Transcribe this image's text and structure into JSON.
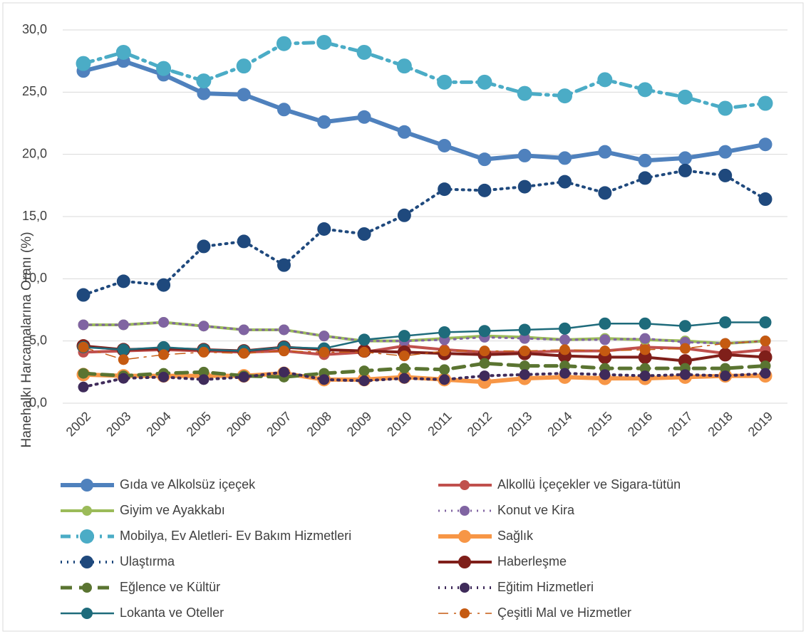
{
  "chart_data": {
    "type": "line",
    "y_label": "Hanehalkı Harcamalarına Oranı (%)",
    "categories": [
      "2002",
      "2003",
      "2004",
      "2005",
      "2006",
      "2007",
      "2008",
      "2009",
      "2010",
      "2011",
      "2012",
      "2013",
      "2014",
      "2015",
      "2016",
      "2017",
      "2018",
      "2019"
    ],
    "ylim": [
      0,
      30
    ],
    "yticks": [
      {
        "value": 0,
        "label": "0,0"
      },
      {
        "value": 5,
        "label": "5,0"
      },
      {
        "value": 10,
        "label": "10,0"
      },
      {
        "value": 15,
        "label": "15,0"
      },
      {
        "value": 20,
        "label": "20,0"
      },
      {
        "value": 25,
        "label": "25,0"
      },
      {
        "value": 30,
        "label": "30,0"
      }
    ],
    "grid": true,
    "legend": "bottom",
    "series": [
      {
        "name": "Gıda ve Alkolsüz içeçek",
        "color": "#4f81bd",
        "line_style": "solid",
        "values": [
          26.7,
          27.5,
          26.4,
          24.9,
          24.8,
          23.6,
          22.6,
          23.0,
          21.8,
          20.7,
          19.6,
          19.9,
          19.7,
          20.2,
          19.5,
          19.7,
          20.2,
          20.8
        ]
      },
      {
        "name": "Alkollü İçeçekler ve Sigara-tütün",
        "color": "#c0504d",
        "line_style": "solid",
        "values": [
          4.1,
          4.2,
          4.3,
          4.2,
          4.1,
          4.2,
          3.9,
          4.1,
          4.6,
          4.3,
          4.1,
          4.1,
          4.2,
          4.2,
          4.5,
          4.4,
          4.0,
          4.3
        ]
      },
      {
        "name": "Giyim ve Ayakkabı",
        "color": "#9bbb59",
        "line_style": "solid",
        "values": [
          6.3,
          6.3,
          6.5,
          6.2,
          5.9,
          5.9,
          5.4,
          5.0,
          5.0,
          5.2,
          5.4,
          5.3,
          5.1,
          5.2,
          5.1,
          5.0,
          4.8,
          5.0
        ]
      },
      {
        "name": "Konut ve Kira",
        "color": "#8064a2",
        "line_style": "dotted",
        "values": [
          6.3,
          6.3,
          6.5,
          6.2,
          5.9,
          5.9,
          5.4,
          5.0,
          5.0,
          5.1,
          5.3,
          5.2,
          5.1,
          5.1,
          5.2,
          4.9,
          4.8,
          5.0
        ]
      },
      {
        "name": "Mobilya, Ev Aletleri- Ev Bakım Hizmetleri",
        "color": "#4bacc6",
        "line_style": "dashdot",
        "values": [
          27.3,
          28.2,
          26.9,
          25.9,
          27.1,
          28.9,
          29.0,
          28.2,
          27.1,
          25.8,
          25.8,
          24.9,
          24.7,
          26.0,
          25.2,
          24.6,
          23.7,
          24.1
        ]
      },
      {
        "name": "Sağlık",
        "color": "#f79646",
        "line_style": "solid",
        "values": [
          2.3,
          2.2,
          2.2,
          2.2,
          2.2,
          2.4,
          1.9,
          1.9,
          2.1,
          1.9,
          1.7,
          2.0,
          2.1,
          2.0,
          2.0,
          2.1,
          2.2,
          2.2
        ]
      },
      {
        "name": "Ulaştırma",
        "color": "#1f497d",
        "line_style": "dotted",
        "values": [
          8.7,
          9.8,
          9.5,
          12.6,
          13.0,
          11.1,
          14.0,
          13.6,
          15.1,
          17.2,
          17.1,
          17.4,
          17.8,
          16.9,
          18.1,
          18.7,
          18.3,
          16.4
        ]
      },
      {
        "name": "Haberleşme",
        "color": "#7f1f1a",
        "line_style": "solid",
        "values": [
          4.6,
          4.3,
          4.4,
          4.3,
          4.2,
          4.5,
          4.3,
          4.2,
          4.1,
          4.0,
          3.9,
          4.0,
          3.8,
          3.7,
          3.7,
          3.4,
          3.9,
          3.7
        ]
      },
      {
        "name": "Eğlence ve Kültür",
        "color": "#5a7431",
        "line_style": "dashed",
        "values": [
          2.4,
          2.2,
          2.4,
          2.5,
          2.2,
          2.1,
          2.4,
          2.6,
          2.8,
          2.7,
          3.2,
          3.0,
          3.0,
          2.8,
          2.8,
          2.8,
          2.8,
          3.0
        ]
      },
      {
        "name": "Eğitim Hizmetleri",
        "color": "#3f2b5a",
        "line_style": "dotted",
        "values": [
          1.3,
          2.0,
          2.1,
          1.9,
          2.1,
          2.5,
          1.9,
          1.8,
          2.0,
          1.9,
          2.2,
          2.3,
          2.4,
          2.3,
          2.2,
          2.3,
          2.2,
          2.4
        ]
      },
      {
        "name": "Lokanta ve Oteller",
        "color": "#1e6b7b",
        "line_style": "solid",
        "values": [
          4.5,
          4.3,
          4.5,
          4.3,
          4.2,
          4.5,
          4.4,
          5.1,
          5.4,
          5.7,
          5.8,
          5.9,
          6.0,
          6.4,
          6.4,
          6.2,
          6.5,
          6.5
        ]
      },
      {
        "name": "Çeşitli Mal ve Hizmetler",
        "color": "#c55a11",
        "line_style": "dashdot",
        "values": [
          4.5,
          3.5,
          3.9,
          4.1,
          4.0,
          4.2,
          4.1,
          4.1,
          3.8,
          4.2,
          4.2,
          4.2,
          4.3,
          4.2,
          4.3,
          4.4,
          4.8,
          5.0
        ]
      }
    ]
  }
}
